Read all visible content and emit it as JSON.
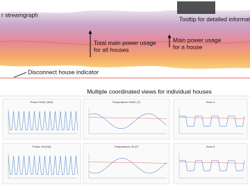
{
  "annotations": {
    "streamgraph": "r streamgraph",
    "tooltip": "Tooltip for detailed informatio",
    "total_main": [
      "Total main power usage",
      "for all houses"
    ],
    "house_main": [
      "Main power usage",
      "for a house"
    ],
    "disconnect": "Disconnect house indicator"
  },
  "section_title": "Multiple coordinated views for individual houses",
  "panels": [
    {
      "title": "Power HVAC (kW)"
    },
    {
      "title": "Temperature HVAC (F)"
    },
    {
      "title": "Zone 4"
    },
    {
      "title": "Power Oil (kW)"
    },
    {
      "title": "Temperature Oil (F)"
    },
    {
      "title": "Zone 5"
    }
  ]
}
